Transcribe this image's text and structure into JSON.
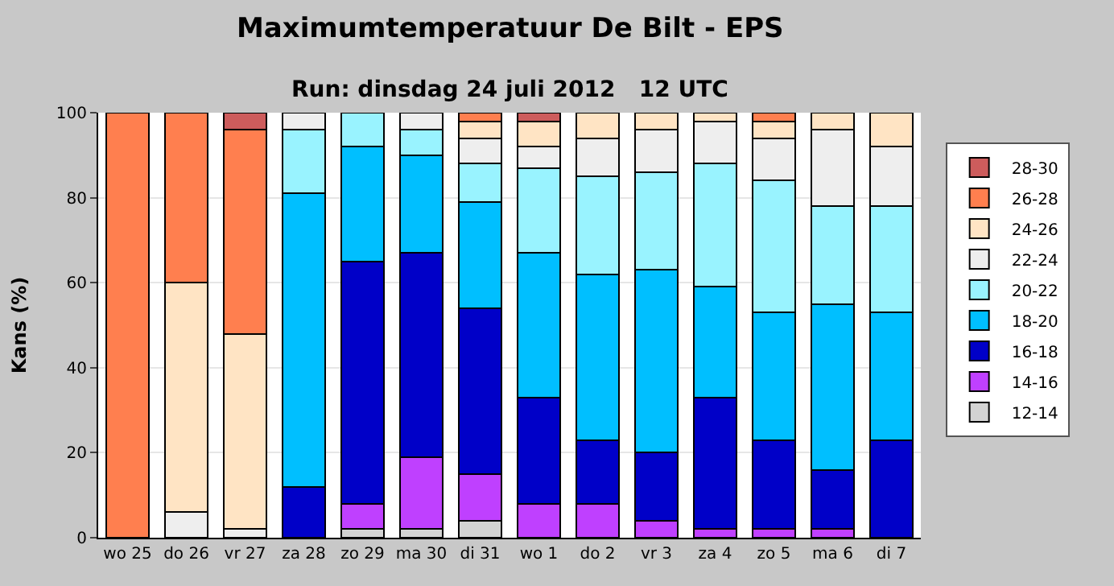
{
  "chart_data": {
    "type": "bar",
    "stacked": true,
    "title": "Maximumtemperatuur De Bilt - EPS",
    "subtitle": "Run: dinsdag 24 juli 2012   12 UTC",
    "ylabel": "Kans (%)",
    "categories": [
      "wo 25",
      "do 26",
      "vr 27",
      "za 28",
      "zo 29",
      "ma 30",
      "di 31",
      "wo 1",
      "do 2",
      "vr 3",
      "za 4",
      "zo 5",
      "ma 6",
      "di 7"
    ],
    "series": [
      {
        "name": "12-14",
        "color": "#d3d3d3",
        "values": [
          null,
          null,
          null,
          null,
          2,
          2,
          4,
          null,
          null,
          null,
          null,
          null,
          null,
          null
        ]
      },
      {
        "name": "14-16",
        "color": "#bf40ff",
        "values": [
          null,
          null,
          null,
          null,
          6,
          17,
          11,
          8,
          8,
          4,
          2,
          2,
          2,
          null
        ]
      },
      {
        "name": "16-18",
        "color": "#0000c8",
        "values": [
          null,
          null,
          null,
          12,
          57,
          48,
          39,
          25,
          15,
          16,
          31,
          21,
          14,
          23
        ]
      },
      {
        "name": "18-20",
        "color": "#00bfff",
        "values": [
          null,
          null,
          null,
          69,
          27,
          23,
          25,
          34,
          39,
          43,
          26,
          30,
          39,
          30
        ]
      },
      {
        "name": "20-22",
        "color": "#99f3ff",
        "values": [
          null,
          null,
          null,
          15,
          8,
          6,
          9,
          20,
          23,
          23,
          29,
          31,
          23,
          25
        ]
      },
      {
        "name": "22-24",
        "color": "#eeeeee",
        "values": [
          null,
          6,
          2,
          4,
          null,
          4,
          6,
          5,
          9,
          10,
          10,
          10,
          18,
          14
        ]
      },
      {
        "name": "24-26",
        "color": "#ffe4c4",
        "values": [
          null,
          54,
          46,
          null,
          null,
          null,
          4,
          6,
          6,
          4,
          2,
          4,
          4,
          8
        ]
      },
      {
        "name": "26-28",
        "color": "#ff7f4f",
        "values": [
          100,
          40,
          48,
          null,
          null,
          null,
          2,
          null,
          null,
          null,
          null,
          2,
          null,
          null
        ]
      },
      {
        "name": "28-30",
        "color": "#cd5c5c",
        "values": [
          null,
          null,
          4,
          null,
          null,
          null,
          null,
          2,
          null,
          null,
          null,
          null,
          null,
          null
        ]
      }
    ],
    "ylim": [
      0,
      100
    ],
    "yticks": [
      0,
      20,
      40,
      60,
      80,
      100
    ],
    "grid": "y",
    "legend": "right"
  }
}
